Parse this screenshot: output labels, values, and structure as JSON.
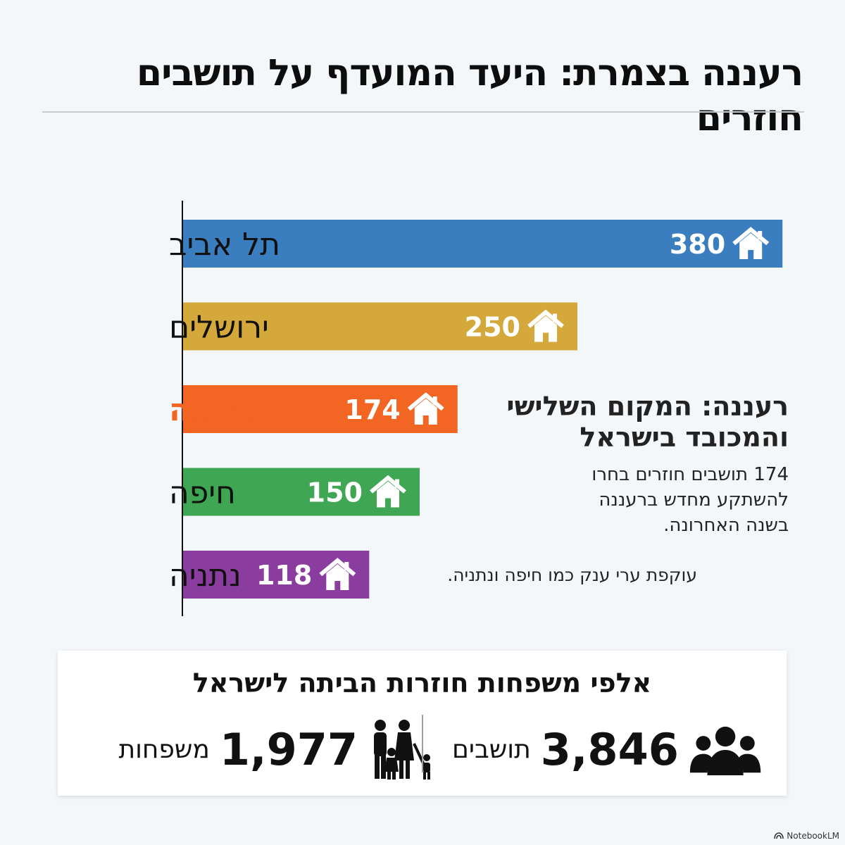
{
  "header": {
    "title": "רעננה בצמרת: היעד המועדף על תושבים חוזרים"
  },
  "chart_data": {
    "type": "bar",
    "orientation": "horizontal",
    "categories": [
      "תל אביב",
      "ירושלים",
      "רעננה",
      "חיפה",
      "נתניה"
    ],
    "values": [
      380,
      250,
      174,
      150,
      118
    ],
    "value_labels": [
      "380",
      "250",
      "174",
      "150",
      "118"
    ],
    "bar_colors": [
      "#3a7ebf",
      "#d4a83a",
      "#f26522",
      "#3fa653",
      "#8a3d9e"
    ],
    "highlight_category": "רעננה",
    "highlight_color": "#f26522",
    "label_color": "#111111",
    "bar_icon": "house-icon",
    "title": "",
    "xlabel": "",
    "ylabel": "",
    "xlim": [
      0,
      400
    ],
    "grid": false
  },
  "callout": {
    "heading_line1": "רעננה: המקום השלישי",
    "heading_line2": "והמכובד בישראל",
    "body_line1": "174 תושבים חוזרים בחרו",
    "body_line2": "להשתקע מחדש ברעננה",
    "body_line3": "בשנה האחרונה.",
    "note": "עוקפת ערי ענק כמו חיפה ונתניה."
  },
  "summary": {
    "title": "אלפי משפחות חוזרות הביתה לישראל",
    "residents_number": "3,846",
    "residents_label": "תושבים",
    "residents_icon": "people-group-icon",
    "families_number": "1,977",
    "families_label": "משפחות",
    "families_icon": "family-icon"
  },
  "watermark": {
    "text": "NotebookLM"
  }
}
